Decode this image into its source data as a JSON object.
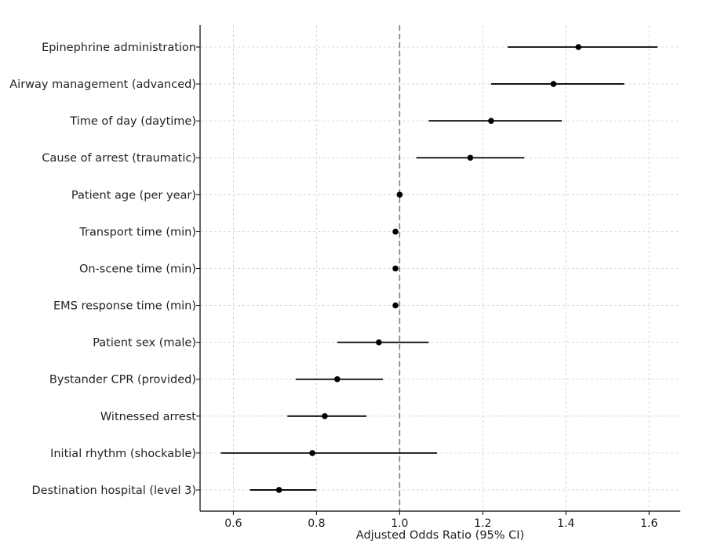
{
  "chart_data": {
    "type": "forest",
    "title": "",
    "xlabel": "Adjusted Odds Ratio (95% CI)",
    "ylabel": "",
    "xlim": [
      0.52,
      1.675
    ],
    "xticks": [
      0.6,
      0.8,
      1.0,
      1.2,
      1.4,
      1.6
    ],
    "xtick_labels": [
      "0.6",
      "0.8",
      "1.0",
      "1.2",
      "1.4",
      "1.6"
    ],
    "reference_line": 1.0,
    "grid": true,
    "colors": {
      "marker": "#000000",
      "reference": "#808080",
      "grid": "#cccccc",
      "axis": "#000000"
    },
    "rows": [
      {
        "label": "Epinephrine administration",
        "or": 1.43,
        "lower": 1.26,
        "upper": 1.62
      },
      {
        "label": "Airway management (advanced)",
        "or": 1.37,
        "lower": 1.22,
        "upper": 1.54
      },
      {
        "label": "Time of day (daytime)",
        "or": 1.22,
        "lower": 1.07,
        "upper": 1.39
      },
      {
        "label": "Cause of arrest (traumatic)",
        "or": 1.17,
        "lower": 1.04,
        "upper": 1.3
      },
      {
        "label": "Patient age (per year)",
        "or": 1.0,
        "lower": 0.995,
        "upper": 1.005
      },
      {
        "label": "Transport time (min)",
        "or": 0.99,
        "lower": 0.985,
        "upper": 0.995
      },
      {
        "label": "On-scene time (min)",
        "or": 0.99,
        "lower": 0.985,
        "upper": 0.995
      },
      {
        "label": "EMS response time (min)",
        "or": 0.99,
        "lower": 0.985,
        "upper": 0.995
      },
      {
        "label": "Patient sex (male)",
        "or": 0.95,
        "lower": 0.85,
        "upper": 1.07
      },
      {
        "label": "Bystander CPR (provided)",
        "or": 0.85,
        "lower": 0.75,
        "upper": 0.96
      },
      {
        "label": "Witnessed arrest",
        "or": 0.82,
        "lower": 0.73,
        "upper": 0.92
      },
      {
        "label": "Initial rhythm (shockable)",
        "or": 0.79,
        "lower": 0.57,
        "upper": 1.09
      },
      {
        "label": "Destination hospital (level 3)",
        "or": 0.71,
        "lower": 0.64,
        "upper": 0.8
      }
    ]
  }
}
